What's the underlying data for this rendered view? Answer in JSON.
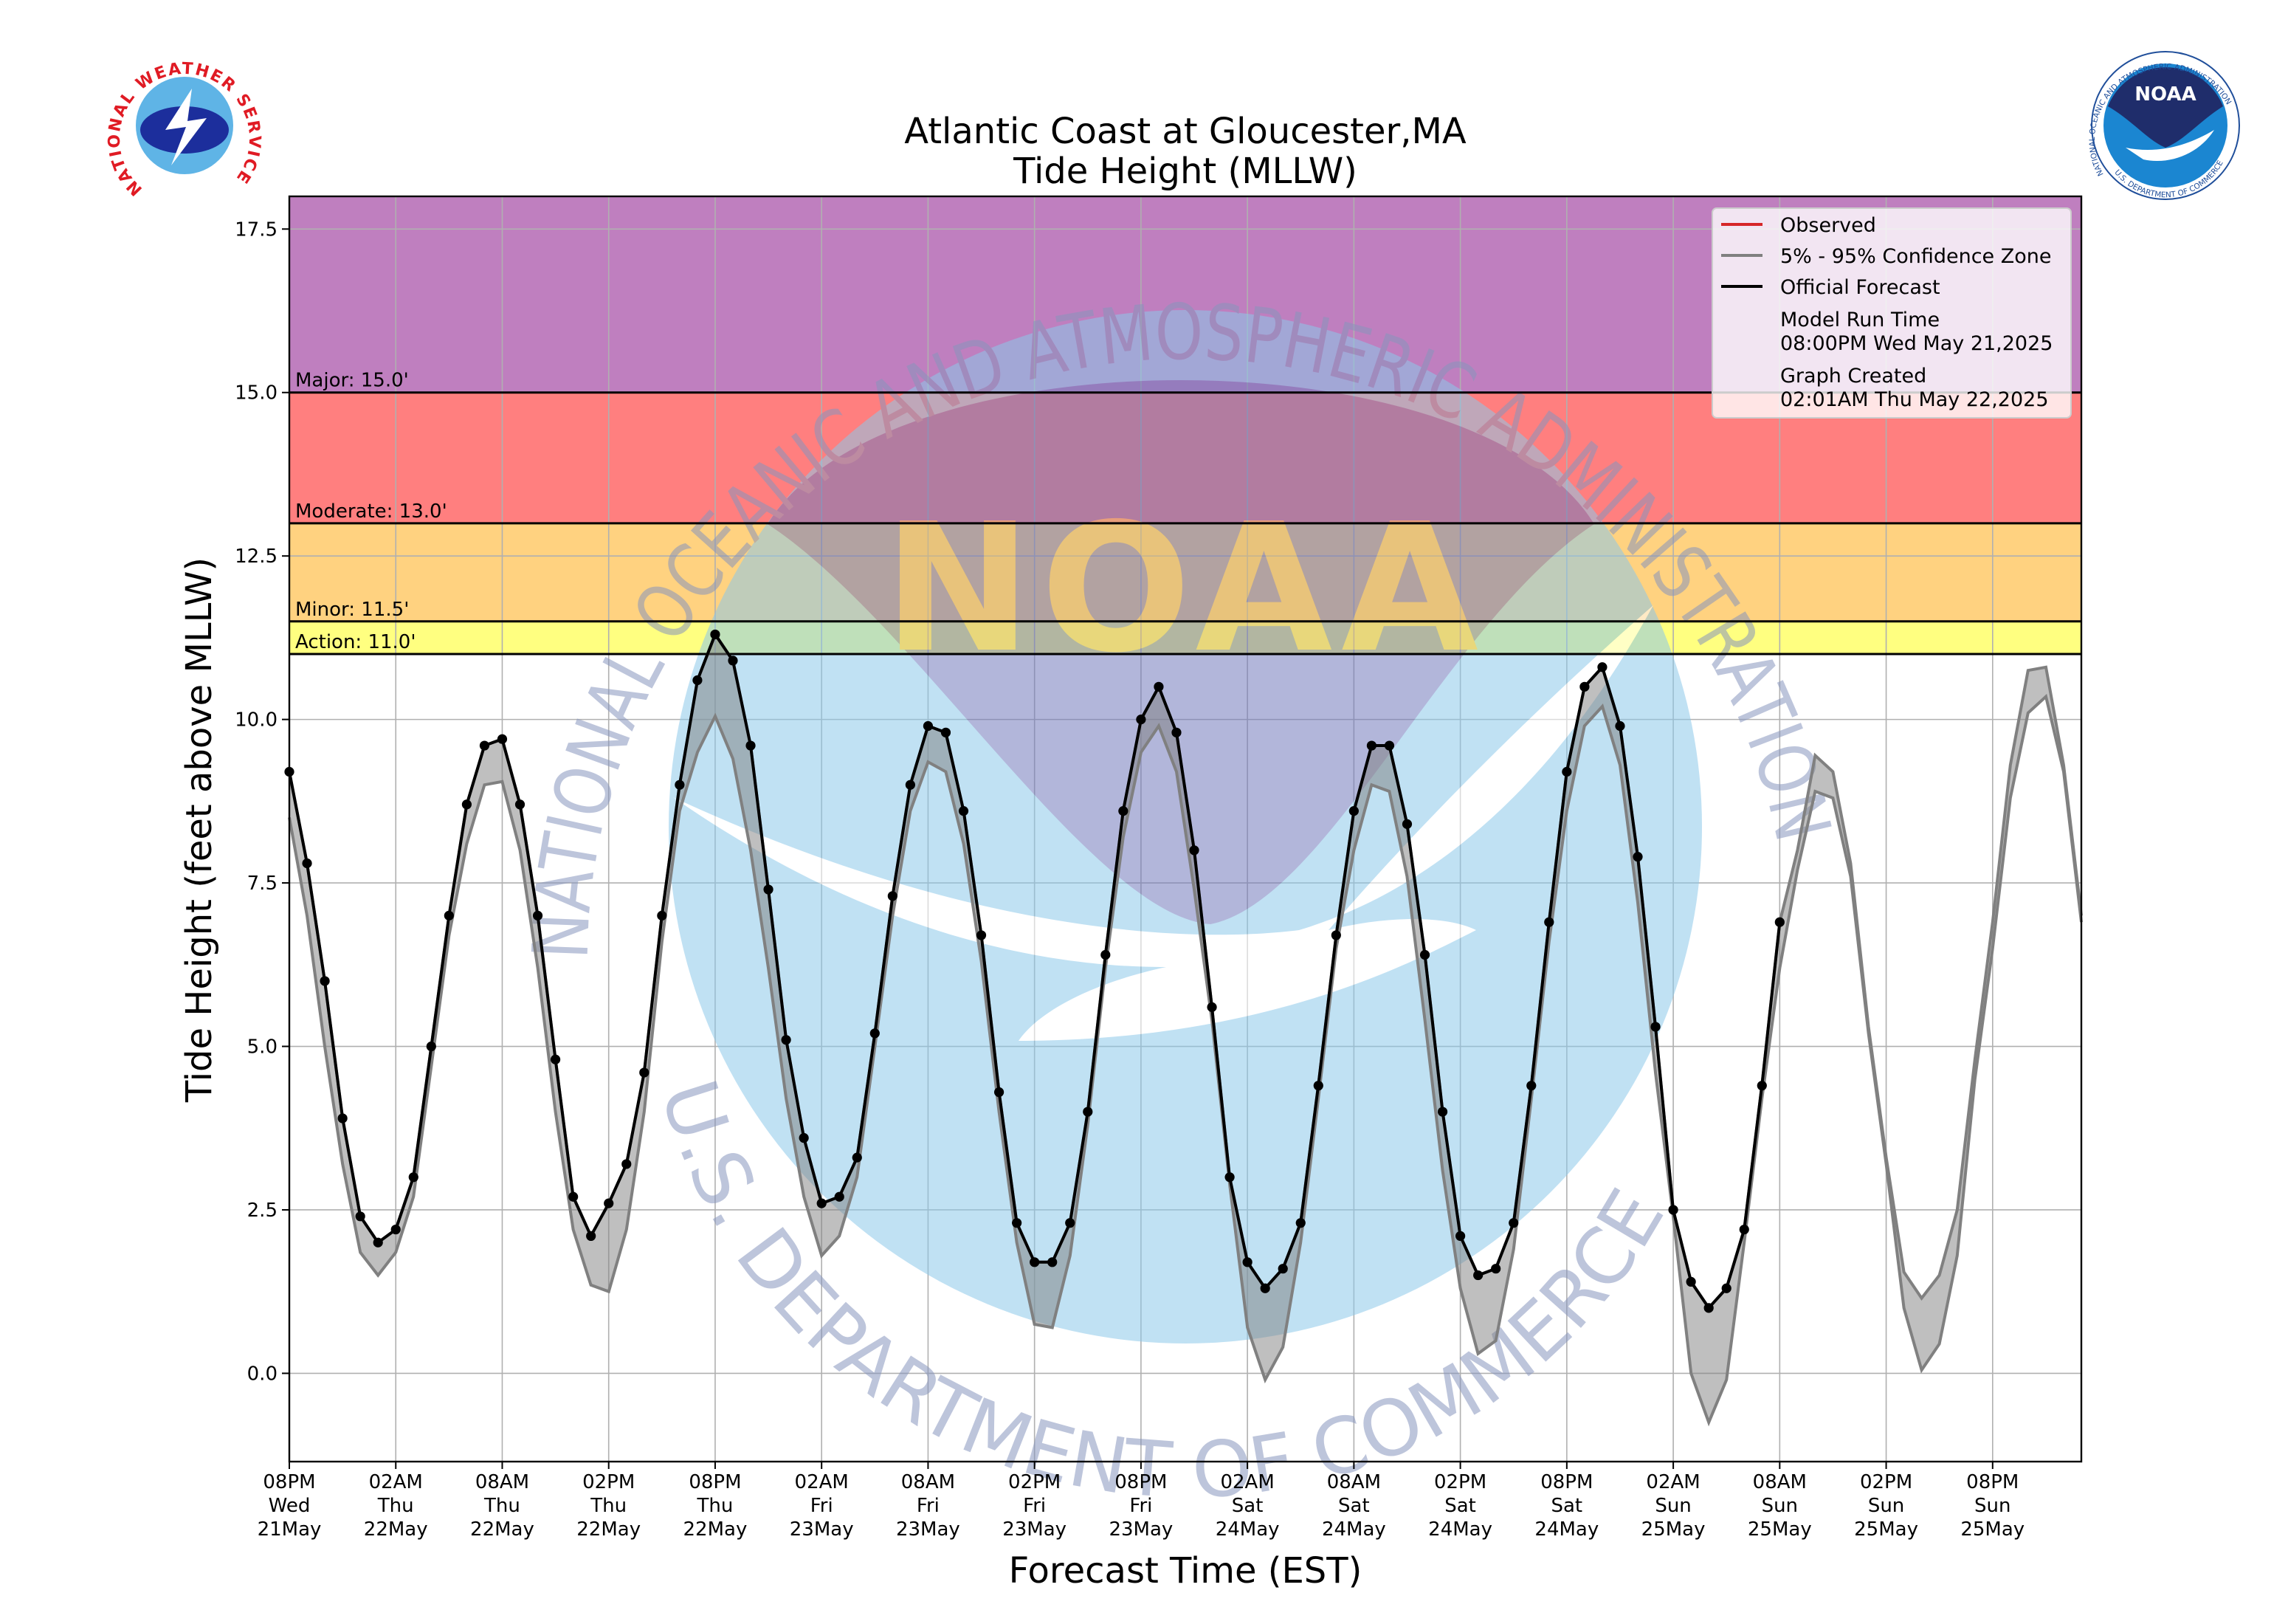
{
  "chart_data": {
    "type": "tide",
    "title": "Atlantic Coast at Gloucester,MA",
    "subtitle": "Tide Height (MLLW)",
    "x_label": "Forecast Time (EST)",
    "y_label": "Tide Height (feet above MLLW)",
    "xlim": [
      0,
      101
    ],
    "ylim": [
      -1.35,
      18
    ],
    "grid": true,
    "legend_position": "upper right",
    "xticks": [
      {
        "value": 0,
        "label": "08PM\nWed\n21May"
      },
      {
        "value": 6,
        "label": "02AM\nThu\n22May"
      },
      {
        "value": 12,
        "label": "08AM\nThu\n22May"
      },
      {
        "value": 18,
        "label": "02PM\nThu\n22May"
      },
      {
        "value": 24,
        "label": "08PM\nThu\n22May"
      },
      {
        "value": 30,
        "label": "02AM\nFri\n23May"
      },
      {
        "value": 36,
        "label": "08AM\nFri\n23May"
      },
      {
        "value": 42,
        "label": "02PM\nFri\n23May"
      },
      {
        "value": 48,
        "label": "08PM\nFri\n23May"
      },
      {
        "value": 54,
        "label": "02AM\nSat\n24May"
      },
      {
        "value": 60,
        "label": "08AM\nSat\n24May"
      },
      {
        "value": 66,
        "label": "02PM\nSat\n24May"
      },
      {
        "value": 72,
        "label": "08PM\nSat\n24May"
      },
      {
        "value": 78,
        "label": "02AM\nSun\n25May"
      },
      {
        "value": 84,
        "label": "08AM\nSun\n25May"
      },
      {
        "value": 90,
        "label": "02PM\nSun\n25May"
      },
      {
        "value": 96,
        "label": "08PM\nSun\n25May"
      }
    ],
    "yticks": [
      {
        "value": 0,
        "label": "0.0"
      },
      2.5,
      {
        "value": 5,
        "label": "5.0"
      },
      7.5,
      {
        "value": 10,
        "label": "10.0"
      },
      12.5,
      {
        "value": 15,
        "label": "15.0"
      },
      17.5
    ],
    "thresholds": [
      {
        "label": "Action: 11.0'",
        "value": 11,
        "color": "#ffff80"
      },
      {
        "label": "Minor: 11.5'",
        "value": 11.5,
        "color": "#ffd280"
      },
      {
        "label": "Moderate: 13.0'",
        "value": 13,
        "color": "#ff7f7f"
      },
      {
        "label": "Major: 15.0'",
        "value": 15,
        "color": "#bf7fbf"
      }
    ],
    "series": [
      {
        "name": "Observed",
        "color": "#d62728",
        "x": [],
        "values": []
      },
      {
        "name": "5% - 95% Confidence Zone",
        "color": "#808080",
        "x": [
          0,
          1,
          2,
          3,
          4,
          5,
          6,
          7,
          8,
          9,
          10,
          11,
          12,
          13,
          14,
          15,
          16,
          17,
          18,
          19,
          20,
          21,
          22,
          23,
          24,
          25,
          26,
          27,
          28,
          29,
          30,
          31,
          32,
          33,
          34,
          35,
          36,
          37,
          38,
          39,
          40,
          41,
          42,
          43,
          44,
          45,
          46,
          47,
          48,
          49,
          50,
          51,
          52,
          53,
          54,
          55,
          56,
          57,
          58,
          59,
          60,
          61,
          62,
          63,
          64,
          65,
          66,
          67,
          68,
          69,
          70,
          71,
          72,
          73,
          74,
          75,
          76,
          77,
          78,
          79,
          80,
          81,
          82,
          83,
          84,
          85,
          86,
          87,
          88,
          89,
          90,
          91,
          92,
          93,
          94,
          95,
          96,
          97,
          98,
          99,
          100,
          101
        ],
        "upper": [
          9.2,
          7.8,
          6.0,
          3.9,
          2.4,
          2.0,
          2.2,
          3.0,
          5.0,
          7.0,
          8.7,
          9.6,
          9.7,
          8.7,
          7.0,
          4.8,
          2.7,
          2.1,
          2.6,
          3.2,
          4.6,
          7.0,
          9.0,
          10.6,
          11.3,
          10.9,
          9.6,
          7.4,
          5.1,
          3.6,
          2.6,
          2.7,
          3.3,
          5.2,
          7.3,
          9.0,
          9.9,
          9.8,
          8.6,
          6.7,
          4.3,
          2.3,
          1.7,
          1.7,
          2.3,
          4.0,
          6.4,
          8.6,
          10.0,
          10.5,
          9.8,
          8.0,
          5.6,
          3.0,
          1.7,
          1.3,
          1.6,
          2.3,
          4.4,
          6.7,
          8.6,
          9.6,
          9.6,
          8.4,
          6.4,
          4.0,
          2.1,
          1.5,
          1.6,
          2.3,
          4.4,
          6.9,
          9.2,
          10.5,
          10.8,
          9.9,
          7.9,
          5.3,
          2.5,
          1.4,
          1.0,
          1.3,
          2.2,
          4.4,
          6.9,
          8.0,
          9.45,
          9.2,
          7.8,
          5.3,
          3.3,
          1.55,
          1.15,
          1.5,
          2.5,
          4.8,
          6.9,
          9.3,
          10.75,
          10.8,
          9.3,
          7.0
        ],
        "lower": [
          8.5,
          7.0,
          5.0,
          3.2,
          1.85,
          1.5,
          1.85,
          2.7,
          4.7,
          6.7,
          8.1,
          9.0,
          9.05,
          8.0,
          6.2,
          4.0,
          2.2,
          1.35,
          1.25,
          2.2,
          4.0,
          6.6,
          8.6,
          9.5,
          10.05,
          9.4,
          8.0,
          6.2,
          4.2,
          2.7,
          1.8,
          2.1,
          3.0,
          5.0,
          7.0,
          8.6,
          9.35,
          9.2,
          8.1,
          6.3,
          4.0,
          2.0,
          0.75,
          0.7,
          1.8,
          3.8,
          6.2,
          8.2,
          9.5,
          9.9,
          9.2,
          7.4,
          5.4,
          2.9,
          0.7,
          -0.1,
          0.4,
          2.0,
          4.2,
          6.5,
          8.0,
          9.0,
          8.9,
          7.6,
          5.4,
          3.1,
          1.3,
          0.3,
          0.5,
          1.9,
          4.2,
          6.6,
          8.6,
          9.9,
          10.2,
          9.3,
          7.2,
          4.6,
          2.4,
          0.0,
          -0.75,
          -0.1,
          2.0,
          4.2,
          6.2,
          7.7,
          8.9,
          8.8,
          7.6,
          5.2,
          3.2,
          1.0,
          0.05,
          0.45,
          1.8,
          4.5,
          6.5,
          8.8,
          10.1,
          10.35,
          9.2,
          6.9
        ]
      },
      {
        "name": "Official Forecast",
        "color": "#000000",
        "x": [
          0,
          1,
          2,
          3,
          4,
          5,
          6,
          7,
          8,
          9,
          10,
          11,
          12,
          13,
          14,
          15,
          16,
          17,
          18,
          19,
          20,
          21,
          22,
          23,
          24,
          25,
          26,
          27,
          28,
          29,
          30,
          31,
          32,
          33,
          34,
          35,
          36,
          37,
          38,
          39,
          40,
          41,
          42,
          43,
          44,
          45,
          46,
          47,
          48,
          49,
          50,
          51,
          52,
          53,
          54,
          55,
          56,
          57,
          58,
          59,
          60,
          61,
          62,
          63,
          64,
          65,
          66,
          67,
          68,
          69,
          70,
          71,
          72,
          73,
          74,
          75,
          76,
          77,
          78,
          79,
          80,
          81,
          82,
          83,
          84
        ],
        "values": [
          9.2,
          7.8,
          6.0,
          3.9,
          2.4,
          2.0,
          2.2,
          3.0,
          5.0,
          7.0,
          8.7,
          9.6,
          9.7,
          8.7,
          7.0,
          4.8,
          2.7,
          2.1,
          2.6,
          3.2,
          4.6,
          7.0,
          9.0,
          10.6,
          11.3,
          10.9,
          9.6,
          7.4,
          5.1,
          3.6,
          2.6,
          2.7,
          3.3,
          5.2,
          7.3,
          9.0,
          9.9,
          9.8,
          8.6,
          6.7,
          4.3,
          2.3,
          1.7,
          1.7,
          2.3,
          4.0,
          6.4,
          8.6,
          10.0,
          10.5,
          9.8,
          8.0,
          5.6,
          3.0,
          1.7,
          1.3,
          1.6,
          2.3,
          4.4,
          6.7,
          8.6,
          9.6,
          9.6,
          8.4,
          6.4,
          4.0,
          2.1,
          1.5,
          1.6,
          2.3,
          4.4,
          6.9,
          9.2,
          10.5,
          10.8,
          9.9,
          7.9,
          5.3,
          2.5,
          1.4,
          1.0,
          1.3,
          2.2,
          4.4,
          6.9
        ]
      }
    ],
    "model_run_label": "Model Run Time",
    "model_run_time": "08:00PM Wed May 21,2025",
    "graph_created_label": "Graph Created",
    "graph_created_time": "02:01AM Thu May 22,2025",
    "watermark": {
      "top": "NATIONAL OCEANIC AND ATMOSPHERIC ADMINISTRATION",
      "bottom": "U.S. DEPARTMENT OF COMMERCE",
      "center": "NOAA"
    },
    "logos": {
      "nws": "NATIONAL WEATHER SERVICE",
      "noaa": "NOAA",
      "noaa_ring": "NATIONAL OCEANIC AND ATMOSPHERIC ADMINISTRATION",
      "noaa_ring_bottom": "U.S. DEPARTMENT OF COMMERCE"
    }
  }
}
